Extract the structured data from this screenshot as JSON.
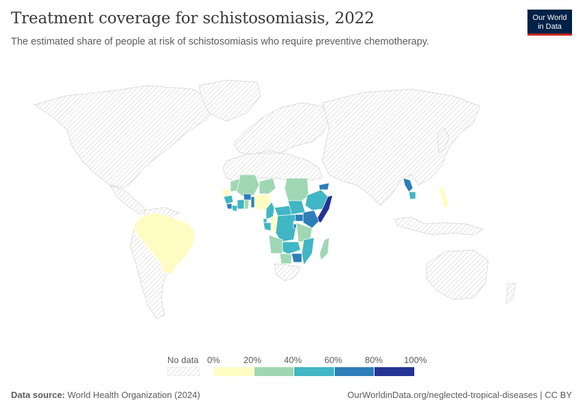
{
  "title": "Treatment coverage for schistosomiasis, 2022",
  "subtitle": "The estimated share of people at risk of schistosomiasis who require preventive chemotherapy.",
  "logo": {
    "line1": "Our World",
    "line2": "in Data",
    "bg": "#002147",
    "accent": "#ce261e"
  },
  "legend": {
    "nodata_label": "No data",
    "ticks": [
      "0%",
      "20%",
      "40%",
      "60%",
      "80%",
      "100%"
    ],
    "colors": [
      "#fffcc3",
      "#9fd7b4",
      "#41b6c4",
      "#2c7fb8",
      "#253494"
    ]
  },
  "footer": {
    "source_label": "Data source:",
    "source_text": " World Health Organization (2024)",
    "url_text": "OurWorldinData.org/neglected-tropical-diseases",
    "license": " | CC BY"
  },
  "chart_data": {
    "type": "choropleth",
    "year": 2022,
    "unit": "%",
    "bins": [
      [
        0,
        20
      ],
      [
        20,
        40
      ],
      [
        40,
        60
      ],
      [
        60,
        80
      ],
      [
        80,
        100
      ]
    ],
    "countries": [
      {
        "name": "Brazil",
        "bin": 0
      },
      {
        "name": "Senegal",
        "bin": 0
      },
      {
        "name": "Mali",
        "bin": 1
      },
      {
        "name": "Niger",
        "bin": 1
      },
      {
        "name": "Mauritania",
        "bin": 1
      },
      {
        "name": "Guinea",
        "bin": 2
      },
      {
        "name": "Sierra Leone",
        "bin": 3
      },
      {
        "name": "Liberia",
        "bin": 2
      },
      {
        "name": "Cote d'Ivoire",
        "bin": 2
      },
      {
        "name": "Burkina Faso",
        "bin": 3
      },
      {
        "name": "Ghana",
        "bin": 1
      },
      {
        "name": "Togo",
        "bin": 0
      },
      {
        "name": "Benin",
        "bin": 3
      },
      {
        "name": "Nigeria",
        "bin": 0
      },
      {
        "name": "Cameroon",
        "bin": 2
      },
      {
        "name": "Equatorial Guinea",
        "bin": 2
      },
      {
        "name": "Gabon",
        "bin": 2
      },
      {
        "name": "Congo",
        "bin": 0
      },
      {
        "name": "Central African Republic",
        "bin": 2
      },
      {
        "name": "Democratic Republic of Congo",
        "bin": 2
      },
      {
        "name": "Sudan",
        "bin": 1
      },
      {
        "name": "South Sudan",
        "bin": 2
      },
      {
        "name": "Eritrea",
        "bin": 3
      },
      {
        "name": "Ethiopia",
        "bin": 2
      },
      {
        "name": "Somalia",
        "bin": 4
      },
      {
        "name": "Uganda",
        "bin": 3
      },
      {
        "name": "Kenya",
        "bin": 3
      },
      {
        "name": "Rwanda",
        "bin": 0
      },
      {
        "name": "Burundi",
        "bin": 3
      },
      {
        "name": "Tanzania",
        "bin": 1
      },
      {
        "name": "Angola",
        "bin": 1
      },
      {
        "name": "Zambia",
        "bin": 2
      },
      {
        "name": "Malawi",
        "bin": 0
      },
      {
        "name": "Mozambique",
        "bin": 2
      },
      {
        "name": "Zimbabwe",
        "bin": 2
      },
      {
        "name": "Namibia",
        "bin": 1
      },
      {
        "name": "Madagascar",
        "bin": 1
      },
      {
        "name": "Laos",
        "bin": 3
      },
      {
        "name": "Cambodia",
        "bin": 2
      },
      {
        "name": "Philippines",
        "bin": 0
      }
    ]
  }
}
